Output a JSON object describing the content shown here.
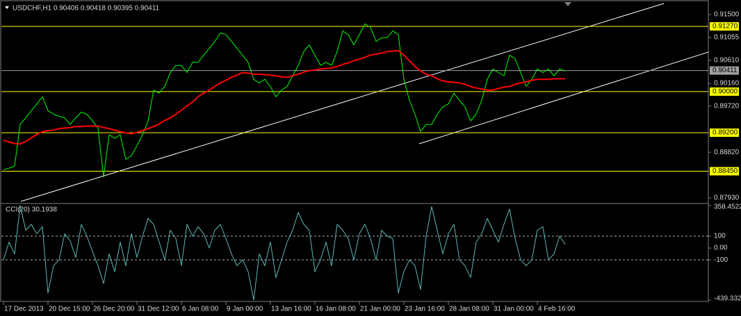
{
  "chart_data": [
    {
      "type": "line",
      "title": "USDCHF,H1  0.90406 0.90418 0.90395 0.90411",
      "categories": [
        "17 Dec 2013",
        null,
        null,
        null,
        null,
        null,
        null,
        null,
        "20 Dec 15:00",
        null,
        null,
        null,
        null,
        null,
        null,
        null,
        "26 Dec 20:00",
        null,
        null,
        null,
        null,
        null,
        null,
        null,
        "31 Dec 12:00",
        null,
        null,
        null,
        null,
        null,
        null,
        null,
        "6 Jan 08:00",
        null,
        null,
        null,
        null,
        null,
        null,
        null,
        "9 Jan 00:00",
        null,
        null,
        null,
        null,
        null,
        null,
        null,
        "13 Jan 16:00",
        null,
        null,
        null,
        null,
        null,
        null,
        null,
        "16 Jan 08:00",
        null,
        null,
        null,
        null,
        null,
        null,
        null,
        "21 Jan 00:00",
        null,
        null,
        null,
        null,
        null,
        null,
        null,
        "23 Jan 16:00",
        null,
        null,
        null,
        null,
        null,
        null,
        null,
        "28 Jan 08:00",
        null,
        null,
        null,
        null,
        null,
        null,
        null,
        "31 Jan 00:00",
        null,
        null,
        null,
        null,
        null,
        null,
        null,
        "4 Feb 16:00",
        null,
        null,
        null,
        null,
        null
      ],
      "series": [
        {
          "color": "#00ff00",
          "values": [
            0.8848,
            0.8851,
            0.8855,
            0.8936,
            0.8949,
            0.8963,
            0.8976,
            0.899,
            0.8963,
            0.8956,
            0.8952,
            0.8949,
            0.8936,
            0.8949,
            0.896,
            0.8956,
            0.8943,
            0.8929,
            0.8834,
            0.8916,
            0.8909,
            0.8916,
            0.8868,
            0.8875,
            0.8895,
            0.8916,
            0.8943,
            0.9003,
            0.8997,
            0.901,
            0.9037,
            0.9051,
            0.9051,
            0.9037,
            0.9057,
            0.9057,
            0.9071,
            0.9084,
            0.9098,
            0.9114,
            0.9111,
            0.9098,
            0.9084,
            0.9071,
            0.9057,
            0.9024,
            0.9017,
            0.9024,
            0.901,
            0.899,
            0.9003,
            0.901,
            0.9031,
            0.9051,
            0.9078,
            0.9091,
            0.9071,
            0.9051,
            0.9057,
            0.9051,
            0.9078,
            0.9118,
            0.9111,
            0.9091,
            0.9111,
            0.9132,
            0.9125,
            0.9098,
            0.9105,
            0.9105,
            0.9118,
            0.9111,
            0.9024,
            0.8983,
            0.8956,
            0.8922,
            0.8936,
            0.8936,
            0.8956,
            0.897,
            0.8976,
            0.8997,
            0.8983,
            0.897,
            0.8943,
            0.8956,
            0.8983,
            0.9024,
            0.9044,
            0.9037,
            0.9031,
            0.9071,
            0.9064,
            0.9037,
            0.901,
            0.9024,
            0.9044,
            0.9037,
            0.9044,
            0.9031,
            0.9044,
            0.904
          ]
        },
        {
          "color": "#ff0000",
          "values": [
            0.8905,
            0.8902,
            0.8899,
            0.8898,
            0.8903,
            0.891,
            0.8917,
            0.8922,
            0.8924,
            0.8925,
            0.8928,
            0.8929,
            0.893,
            0.8932,
            0.8932,
            0.8933,
            0.8933,
            0.8933,
            0.893,
            0.8928,
            0.8925,
            0.8922,
            0.892,
            0.8918,
            0.8921,
            0.8924,
            0.8928,
            0.8932,
            0.8937,
            0.8944,
            0.8949,
            0.8956,
            0.8964,
            0.8972,
            0.898,
            0.899,
            0.8997,
            0.9003,
            0.901,
            0.9017,
            0.9022,
            0.9028,
            0.9032,
            0.9037,
            0.9036,
            0.9034,
            0.9034,
            0.9033,
            0.9032,
            0.9031,
            0.9029,
            0.9028,
            0.9031,
            0.9034,
            0.9038,
            0.9041,
            0.9042,
            0.9044,
            0.9045,
            0.9046,
            0.9049,
            0.9053,
            0.9056,
            0.906,
            0.9063,
            0.9067,
            0.9071,
            0.9073,
            0.9075,
            0.9078,
            0.9079,
            0.908,
            0.9071,
            0.906,
            0.9049,
            0.904,
            0.9034,
            0.9031,
            0.9025,
            0.9021,
            0.9019,
            0.9018,
            0.9017,
            0.9014,
            0.901,
            0.9007,
            0.9005,
            0.9003,
            0.9003,
            0.9006,
            0.9009,
            0.901,
            0.9014,
            0.9017,
            0.9019,
            0.9022,
            0.9024,
            0.9024,
            0.9024,
            0.9025,
            0.9025,
            0.9025
          ]
        }
      ],
      "ylim": [
        0.87849,
        0.91716
      ],
      "yticks": [
        {
          "value": 0.915,
          "label": "0.91500"
        },
        {
          "value": 0.91055,
          "label": "0.91055"
        },
        {
          "value": 0.9061,
          "label": "0.90610"
        },
        {
          "value": 0.9016,
          "label": "0.90160"
        },
        {
          "value": 0.8972,
          "label": "0.89720"
        },
        {
          "value": 0.8882,
          "label": "0.88820"
        },
        {
          "value": 0.8793,
          "label": "0.87930"
        }
      ],
      "levels": [
        {
          "value": 0.9127,
          "label": "0.91270",
          "color": "#ffff00"
        },
        {
          "value": 0.9041,
          "label": "0.90411",
          "color": "#a0a0a0"
        },
        {
          "value": 0.9,
          "label": "0.90000",
          "color": "#ffff00"
        },
        {
          "value": 0.892,
          "label": "0.89200",
          "color": "#ffff00"
        },
        {
          "value": 0.8845,
          "label": "0.88450",
          "color": "#ffff00"
        }
      ]
    },
    {
      "type": "line",
      "title": "CCI(20) 30.1938",
      "series": [
        {
          "color": "#5fb8b8",
          "values": [
            -100,
            50,
            -50,
            358.45,
            150,
            200,
            120,
            180,
            -380,
            -150,
            -100,
            120,
            60,
            -80,
            200,
            100,
            -30,
            -150,
            -300,
            -50,
            -200,
            50,
            -150,
            120,
            -80,
            100,
            250,
            200,
            50,
            -100,
            150,
            80,
            -150,
            200,
            100,
            180,
            120,
            0,
            150,
            200,
            80,
            -50,
            -150,
            -100,
            -200,
            -439.33,
            -50,
            -150,
            50,
            -250,
            -100,
            50,
            150,
            300,
            200,
            150,
            -200,
            -100,
            50,
            -150,
            200,
            150,
            80,
            -100,
            120,
            200,
            80,
            -100,
            150,
            100,
            80,
            -380,
            -200,
            -100,
            -150,
            -350,
            100,
            350,
            150,
            -50,
            120,
            200,
            -100,
            -150,
            -250,
            50,
            120,
            250,
            150,
            50,
            200,
            330,
            80,
            -100,
            -150,
            -100,
            150,
            180,
            -100,
            -50,
            100,
            30
          ]
        }
      ],
      "ylim": [
        -439.3325,
        358.4522
      ],
      "yticks": [
        358.4522,
        100,
        {
          "value": 0,
          "label": "0.00"
        },
        -100,
        -439.3325
      ],
      "levels": [
        {
          "value": 100,
          "color": "#b0b0b0"
        },
        {
          "value": -100,
          "color": "#b0b0b0"
        }
      ]
    }
  ]
}
